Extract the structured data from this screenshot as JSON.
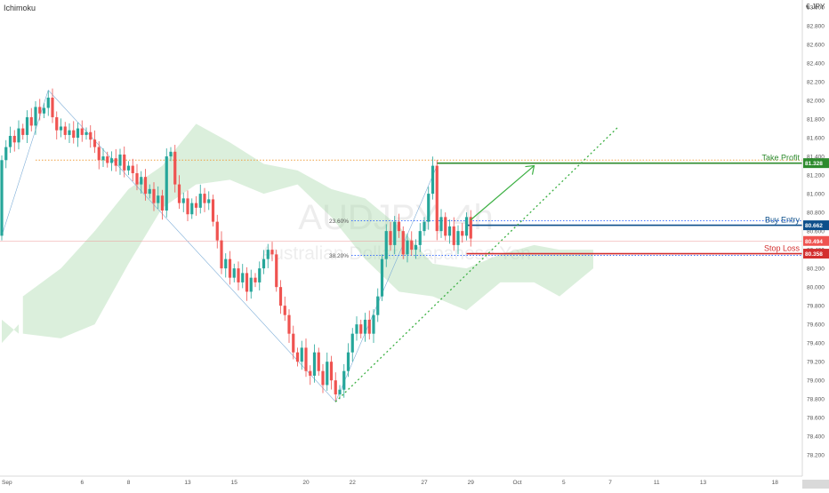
{
  "chart_data": {
    "type": "candlestick",
    "indicator": "Ichimoku",
    "currency": "€ JPY",
    "watermark": {
      "symbol": "AUDJPY, 4h",
      "name": "Australian Dollar / Japanese Yen"
    },
    "ylim": [
      78.05,
      83.0
    ],
    "y_ticks": [
      "83.000",
      "82.800",
      "82.600",
      "82.400",
      "82.200",
      "82.000",
      "81.800",
      "81.600",
      "81.400",
      "81.200",
      "81.000",
      "80.800",
      "80.600",
      "80.400",
      "80.200",
      "80.000",
      "79.800",
      "79.600",
      "79.400",
      "79.200",
      "79.000",
      "78.800",
      "78.600",
      "78.400",
      "78.200"
    ],
    "x_ticks": [
      {
        "label": "Sep",
        "slot": 0
      },
      {
        "label": "6",
        "slot": 19
      },
      {
        "label": "8",
        "slot": 30
      },
      {
        "label": "13",
        "slot": 44
      },
      {
        "label": "15",
        "slot": 55
      },
      {
        "label": "20",
        "slot": 72
      },
      {
        "label": "22",
        "slot": 83
      },
      {
        "label": "27",
        "slot": 100
      },
      {
        "label": "29",
        "slot": 111
      },
      {
        "label": "Oct",
        "slot": 122
      },
      {
        "label": "5",
        "slot": 133
      },
      {
        "label": "7",
        "slot": 144
      },
      {
        "label": "11",
        "slot": 155
      },
      {
        "label": "13",
        "slot": 166
      },
      {
        "label": "18",
        "slot": 183
      }
    ],
    "levels": [
      {
        "name": "Take Profit",
        "value": 81.328,
        "color": "#2e8b2e"
      },
      {
        "name": "Buy Entry",
        "value": 80.662,
        "color": "#0d4f8b"
      },
      {
        "name": "Stop Loss",
        "value": 80.358,
        "color": "#d32f2f"
      }
    ],
    "current_price": {
      "value": 80.494,
      "color": "#ef5350"
    },
    "fibonacci": [
      {
        "label": "23.60%",
        "value": 80.71
      },
      {
        "label": "38.20%",
        "value": 80.34
      }
    ],
    "closes": [
      81.36,
      81.5,
      81.62,
      81.55,
      81.7,
      81.63,
      81.82,
      81.73,
      81.93,
      81.86,
      81.92,
      82.03,
      81.82,
      81.68,
      81.72,
      81.63,
      81.68,
      81.6,
      81.7,
      81.63,
      81.66,
      81.58,
      81.5,
      81.36,
      81.4,
      81.33,
      81.38,
      81.3,
      81.42,
      81.25,
      81.3,
      81.22,
      81.1,
      81.18,
      81.0,
      81.05,
      80.9,
      80.98,
      80.82,
      81.4,
      81.45,
      81.1,
      80.9,
      80.95,
      80.78,
      80.9,
      80.85,
      81.0,
      80.9,
      80.94,
      80.7,
      80.5,
      80.2,
      80.3,
      80.1,
      80.2,
      80.05,
      80.15,
      79.95,
      80.1,
      80.05,
      80.2,
      80.3,
      80.4,
      80.35,
      80.0,
      79.8,
      79.7,
      79.5,
      79.3,
      79.2,
      79.35,
      79.1,
      79.05,
      79.3,
      79.1,
      78.95,
      79.2,
      79.0,
      78.85,
      78.9,
      79.1,
      79.3,
      79.5,
      79.6,
      79.5,
      79.65,
      79.5,
      79.7,
      79.9,
      80.3,
      80.6,
      80.45,
      80.7,
      80.6,
      80.35,
      80.5,
      80.4,
      80.45,
      80.6,
      80.7,
      81.0,
      81.3,
      80.6,
      80.75,
      80.55,
      80.65,
      80.45,
      80.6,
      80.55,
      80.75,
      80.52
    ],
    "kumo": [
      {
        "slot": 5,
        "a": 79.9,
        "b": 79.5
      },
      {
        "slot": 14,
        "a": 80.2,
        "b": 79.45
      },
      {
        "slot": 22,
        "a": 80.6,
        "b": 79.6
      },
      {
        "slot": 30,
        "a": 81.05,
        "b": 80.25
      },
      {
        "slot": 38,
        "a": 81.3,
        "b": 80.85
      },
      {
        "slot": 46,
        "a": 81.75,
        "b": 81.1
      },
      {
        "slot": 54,
        "a": 81.55,
        "b": 81.15
      },
      {
        "slot": 62,
        "a": 81.32,
        "b": 81.0
      },
      {
        "slot": 70,
        "a": 81.25,
        "b": 81.1
      },
      {
        "slot": 78,
        "a": 81.05,
        "b": 80.75
      },
      {
        "slot": 86,
        "a": 80.95,
        "b": 80.3
      },
      {
        "slot": 94,
        "a": 80.65,
        "b": 79.95
      },
      {
        "slot": 102,
        "a": 80.25,
        "b": 79.9
      },
      {
        "slot": 110,
        "a": 80.2,
        "b": 79.75
      },
      {
        "slot": 118,
        "a": 80.35,
        "b": 80.05
      },
      {
        "slot": 126,
        "a": 80.45,
        "b": 80.05
      },
      {
        "slot": 132,
        "a": 80.4,
        "b": 79.9
      },
      {
        "slot": 140,
        "a": 80.4,
        "b": 80.2
      }
    ],
    "left_kumo": [
      {
        "slot": 0,
        "a": 79.65,
        "b": 79.4
      },
      {
        "slot": 4,
        "a": 79.5,
        "b": 79.6
      }
    ]
  }
}
